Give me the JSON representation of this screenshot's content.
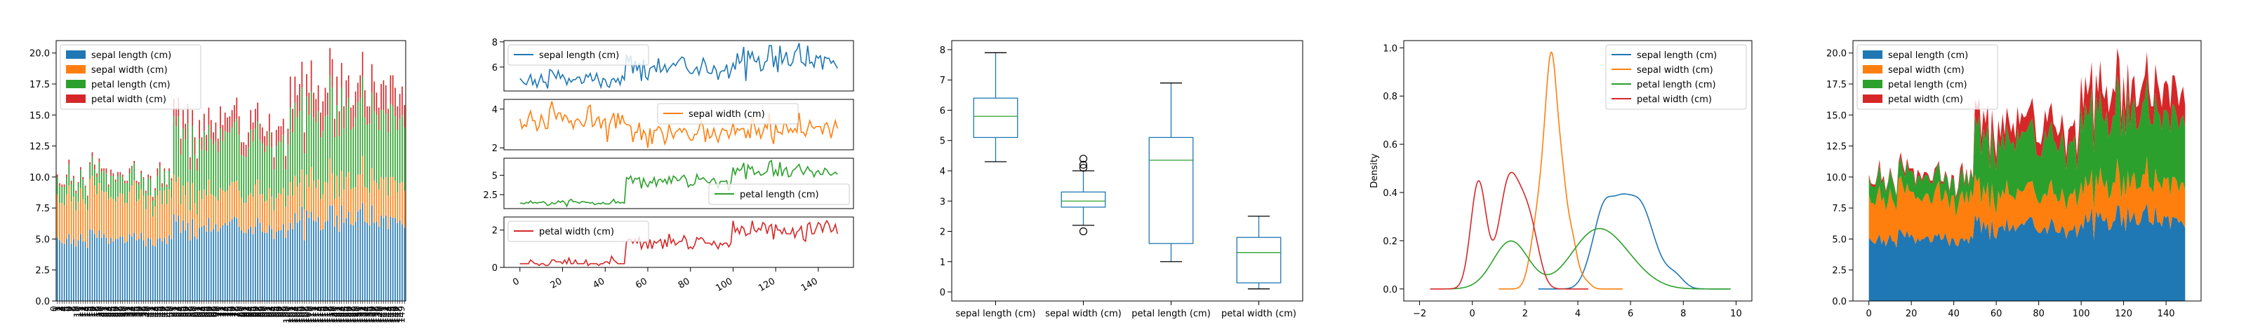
{
  "chart_data": [
    {
      "type": "bar",
      "stacked": true,
      "categories": "0..149",
      "ylim": [
        0,
        21
      ],
      "yticks": [
        0.0,
        2.5,
        5.0,
        7.5,
        10.0,
        12.5,
        15.0,
        17.5,
        20.0
      ],
      "legend": "upper-left",
      "series": [
        {
          "name": "sepal length (cm)",
          "color": "#1f77b4",
          "column": "sepal_length"
        },
        {
          "name": "sepal width (cm)",
          "color": "#ff7f0e",
          "column": "sepal_width"
        },
        {
          "name": "petal length (cm)",
          "color": "#2ca02c",
          "column": "petal_length"
        },
        {
          "name": "petal width (cm)",
          "color": "#d62728",
          "column": "petal_width"
        }
      ]
    },
    {
      "type": "line",
      "subplots": [
        {
          "name": "sepal length (cm)",
          "color": "#1f77b4",
          "column": "sepal_length",
          "yticks": [
            6,
            8
          ],
          "ylim": [
            4.1,
            8.1
          ],
          "legend": "upper-left"
        },
        {
          "name": "sepal width (cm)",
          "color": "#ff7f0e",
          "column": "sepal_width",
          "yticks": [
            2,
            4
          ],
          "ylim": [
            1.9,
            4.5
          ],
          "legend": "upper-center"
        },
        {
          "name": "petal length (cm)",
          "color": "#2ca02c",
          "column": "petal_length",
          "yticks": [
            2.5,
            5.0
          ],
          "ylim": [
            0.7,
            7.2
          ],
          "legend": "lower-right"
        },
        {
          "name": "petal width (cm)",
          "color": "#d62728",
          "column": "petal_width",
          "yticks": [
            0,
            2
          ],
          "ylim": [
            0,
            2.7
          ],
          "legend": "upper-left"
        }
      ],
      "xticks": [
        0,
        20,
        40,
        60,
        80,
        100,
        120,
        140
      ],
      "xlim": [
        -7.5,
        156.5
      ]
    },
    {
      "type": "box",
      "categories": [
        "sepal length (cm)",
        "sepal width (cm)",
        "petal length (cm)",
        "petal width (cm)"
      ],
      "stats": [
        {
          "whislo": 4.3,
          "q1": 5.1,
          "med": 5.8,
          "q3": 6.4,
          "whishi": 7.9,
          "fliers": []
        },
        {
          "whislo": 2.2,
          "q1": 2.8,
          "med": 3.0,
          "q3": 3.3,
          "whishi": 4.0,
          "fliers": [
            4.4,
            4.1,
            4.2,
            2.0
          ]
        },
        {
          "whislo": 1.0,
          "q1": 1.6,
          "med": 4.35,
          "q3": 5.1,
          "whishi": 6.9,
          "fliers": []
        },
        {
          "whislo": 0.1,
          "q1": 0.3,
          "med": 1.3,
          "q3": 1.8,
          "whishi": 2.5,
          "fliers": []
        }
      ],
      "ylim": [
        -0.3,
        8.3
      ],
      "yticks": [
        0,
        1,
        2,
        3,
        4,
        5,
        6,
        7,
        8
      ]
    },
    {
      "type": "line",
      "kind": "density",
      "ylabel": "Density",
      "xlim": [
        -2.6,
        10.6
      ],
      "ylim": [
        -0.05,
        1.03
      ],
      "xticks": [
        -2,
        0,
        2,
        4,
        6,
        8,
        10
      ],
      "yticks": [
        0.0,
        0.2,
        0.4,
        0.6,
        0.8,
        1.0
      ],
      "legend": "upper-right",
      "series": [
        {
          "name": "sepal length (cm)",
          "color": "#1f77b4",
          "column": "sepal_length",
          "x_range": [
            2.5,
            9.7
          ]
        },
        {
          "name": "sepal width (cm)",
          "color": "#ff7f0e",
          "column": "sepal_width",
          "x_range": [
            1.0,
            5.7
          ]
        },
        {
          "name": "petal length (cm)",
          "color": "#2ca02c",
          "column": "petal_length",
          "x_range": [
            -1.0,
            9.8
          ]
        },
        {
          "name": "petal width (cm)",
          "color": "#d62728",
          "column": "petal_width",
          "x_range": [
            -1.6,
            4.4
          ]
        }
      ]
    },
    {
      "type": "area",
      "stacked": true,
      "xlim": [
        -7.5,
        156.5
      ],
      "ylim": [
        0,
        21
      ],
      "xticks": [
        0,
        20,
        40,
        60,
        80,
        100,
        120,
        140
      ],
      "yticks": [
        0.0,
        2.5,
        5.0,
        7.5,
        10.0,
        12.5,
        15.0,
        17.5,
        20.0
      ],
      "legend": "upper-left",
      "series": [
        {
          "name": "sepal length (cm)",
          "color": "#1f77b4",
          "column": "sepal_length"
        },
        {
          "name": "sepal width (cm)",
          "color": "#ff7f0e",
          "column": "sepal_width"
        },
        {
          "name": "petal length (cm)",
          "color": "#2ca02c",
          "column": "petal_length"
        },
        {
          "name": "petal width (cm)",
          "color": "#d62728",
          "column": "petal_width"
        }
      ]
    }
  ],
  "dataset": {
    "sepal_length": [
      5.1,
      4.9,
      4.7,
      4.6,
      5.0,
      5.4,
      4.6,
      5.0,
      4.4,
      4.9,
      5.4,
      4.8,
      4.8,
      4.3,
      5.8,
      5.7,
      5.4,
      5.1,
      5.7,
      5.1,
      5.4,
      5.1,
      4.6,
      5.1,
      4.8,
      5.0,
      5.0,
      5.2,
      5.2,
      4.7,
      4.8,
      5.4,
      5.2,
      5.5,
      4.9,
      5.0,
      5.5,
      4.9,
      4.4,
      5.1,
      5.0,
      4.5,
      4.4,
      5.0,
      5.1,
      4.8,
      5.1,
      4.6,
      5.3,
      5.0,
      7.0,
      6.4,
      6.9,
      5.5,
      6.5,
      5.7,
      6.3,
      4.9,
      6.6,
      5.2,
      5.0,
      5.9,
      6.0,
      6.1,
      5.6,
      6.7,
      5.6,
      5.8,
      6.2,
      5.6,
      5.9,
      6.1,
      6.3,
      6.1,
      6.4,
      6.6,
      6.8,
      6.7,
      6.0,
      5.7,
      5.5,
      5.5,
      5.8,
      6.0,
      5.4,
      6.0,
      6.7,
      6.3,
      5.6,
      5.5,
      5.5,
      6.1,
      5.8,
      5.0,
      5.6,
      5.7,
      5.7,
      6.2,
      5.1,
      5.7,
      6.3,
      5.8,
      7.1,
      6.3,
      6.5,
      7.6,
      4.9,
      7.3,
      6.7,
      7.2,
      6.5,
      6.4,
      6.8,
      5.7,
      5.8,
      6.4,
      6.5,
      7.7,
      7.7,
      6.0,
      6.9,
      5.6,
      7.7,
      6.3,
      6.7,
      7.2,
      6.2,
      6.1,
      6.4,
      7.2,
      7.4,
      7.9,
      6.4,
      6.3,
      6.1,
      7.7,
      6.3,
      6.4,
      6.0,
      6.9,
      6.7,
      6.9,
      5.8,
      6.8,
      6.7,
      6.7,
      6.3,
      6.5,
      6.2,
      5.9
    ],
    "sepal_width": [
      3.5,
      3.0,
      3.2,
      3.1,
      3.6,
      3.9,
      3.4,
      3.4,
      2.9,
      3.1,
      3.7,
      3.4,
      3.0,
      3.0,
      4.0,
      4.4,
      3.9,
      3.5,
      3.8,
      3.8,
      3.4,
      3.7,
      3.6,
      3.3,
      3.4,
      3.0,
      3.4,
      3.5,
      3.4,
      3.2,
      3.1,
      3.4,
      4.1,
      4.2,
      3.1,
      3.2,
      3.5,
      3.6,
      3.0,
      3.4,
      3.5,
      2.3,
      3.2,
      3.5,
      3.8,
      3.0,
      3.8,
      3.2,
      3.7,
      3.3,
      3.2,
      3.2,
      3.1,
      2.3,
      2.8,
      2.8,
      3.3,
      2.4,
      2.9,
      2.7,
      2.0,
      3.0,
      2.2,
      2.9,
      2.9,
      3.1,
      3.0,
      2.7,
      2.2,
      2.5,
      3.2,
      2.8,
      2.5,
      2.8,
      2.9,
      3.0,
      2.8,
      3.0,
      2.9,
      2.6,
      2.4,
      2.4,
      2.7,
      2.7,
      3.0,
      3.4,
      3.1,
      2.3,
      3.0,
      2.5,
      2.6,
      3.0,
      2.6,
      2.3,
      2.7,
      3.0,
      2.9,
      2.9,
      2.5,
      2.8,
      3.3,
      2.7,
      3.0,
      2.9,
      3.0,
      3.0,
      2.5,
      2.9,
      2.5,
      3.6,
      3.2,
      2.7,
      3.0,
      2.5,
      2.8,
      3.2,
      3.0,
      3.8,
      2.6,
      2.2,
      3.2,
      2.8,
      2.8,
      2.7,
      3.3,
      3.2,
      2.8,
      3.0,
      2.8,
      3.0,
      2.8,
      3.8,
      2.8,
      2.8,
      2.6,
      3.0,
      3.4,
      3.1,
      3.0,
      3.1,
      3.1,
      3.1,
      2.7,
      3.2,
      3.3,
      3.0,
      2.5,
      3.0,
      3.4,
      3.0
    ],
    "petal_length": [
      1.4,
      1.4,
      1.3,
      1.5,
      1.4,
      1.7,
      1.4,
      1.5,
      1.4,
      1.5,
      1.5,
      1.6,
      1.4,
      1.1,
      1.2,
      1.5,
      1.3,
      1.4,
      1.7,
      1.5,
      1.7,
      1.5,
      1.0,
      1.7,
      1.9,
      1.6,
      1.6,
      1.5,
      1.4,
      1.6,
      1.6,
      1.5,
      1.5,
      1.4,
      1.5,
      1.2,
      1.3,
      1.4,
      1.3,
      1.5,
      1.3,
      1.3,
      1.3,
      1.6,
      1.9,
      1.4,
      1.6,
      1.4,
      1.5,
      1.4,
      4.7,
      4.5,
      4.9,
      4.0,
      4.6,
      4.5,
      4.7,
      3.3,
      4.6,
      3.9,
      3.5,
      4.2,
      4.0,
      4.7,
      3.6,
      4.4,
      4.5,
      4.1,
      4.5,
      3.9,
      4.8,
      4.0,
      4.9,
      4.7,
      4.3,
      4.4,
      4.8,
      5.0,
      4.5,
      3.5,
      3.8,
      3.7,
      3.9,
      5.1,
      4.5,
      4.5,
      4.7,
      4.4,
      4.1,
      4.0,
      4.4,
      4.6,
      4.0,
      3.3,
      4.2,
      4.2,
      4.2,
      4.3,
      3.0,
      4.1,
      6.0,
      5.1,
      5.9,
      5.6,
      5.8,
      6.6,
      4.5,
      6.3,
      5.8,
      6.1,
      5.1,
      5.3,
      5.5,
      5.0,
      5.1,
      5.3,
      5.5,
      6.7,
      6.9,
      5.0,
      5.7,
      4.9,
      6.7,
      4.9,
      5.7,
      6.0,
      4.8,
      4.9,
      5.6,
      5.8,
      6.1,
      6.4,
      5.6,
      5.1,
      5.6,
      6.1,
      5.6,
      5.5,
      4.8,
      5.4,
      5.6,
      5.1,
      5.1,
      5.9,
      5.7,
      5.2,
      5.0,
      5.2,
      5.4,
      5.1
    ],
    "petal_width": [
      0.2,
      0.2,
      0.2,
      0.2,
      0.2,
      0.4,
      0.3,
      0.2,
      0.2,
      0.1,
      0.2,
      0.2,
      0.1,
      0.1,
      0.2,
      0.4,
      0.4,
      0.3,
      0.3,
      0.3,
      0.2,
      0.4,
      0.2,
      0.5,
      0.2,
      0.2,
      0.4,
      0.2,
      0.2,
      0.2,
      0.2,
      0.4,
      0.1,
      0.2,
      0.2,
      0.2,
      0.2,
      0.1,
      0.2,
      0.2,
      0.3,
      0.3,
      0.2,
      0.6,
      0.4,
      0.3,
      0.2,
      0.2,
      0.2,
      0.2,
      1.4,
      1.5,
      1.5,
      1.3,
      1.5,
      1.3,
      1.6,
      1.0,
      1.3,
      1.4,
      1.0,
      1.5,
      1.0,
      1.4,
      1.3,
      1.4,
      1.5,
      1.0,
      1.5,
      1.1,
      1.8,
      1.3,
      1.5,
      1.2,
      1.3,
      1.4,
      1.4,
      1.7,
      1.5,
      1.0,
      1.1,
      1.0,
      1.2,
      1.6,
      1.5,
      1.6,
      1.5,
      1.3,
      1.3,
      1.3,
      1.2,
      1.4,
      1.2,
      1.0,
      1.3,
      1.2,
      1.3,
      1.3,
      1.1,
      1.3,
      2.5,
      1.9,
      2.1,
      1.8,
      2.2,
      2.1,
      1.7,
      1.8,
      1.8,
      2.5,
      2.0,
      1.9,
      2.1,
      2.0,
      2.4,
      2.3,
      1.8,
      2.2,
      2.3,
      1.5,
      2.3,
      2.0,
      2.0,
      1.8,
      2.1,
      1.8,
      1.8,
      1.8,
      2.1,
      1.6,
      1.9,
      2.0,
      2.2,
      1.5,
      1.4,
      2.3,
      2.4,
      1.8,
      1.8,
      2.1,
      2.4,
      2.3,
      1.9,
      2.3,
      2.5,
      2.3,
      1.9,
      2.0,
      2.3,
      1.8
    ]
  }
}
